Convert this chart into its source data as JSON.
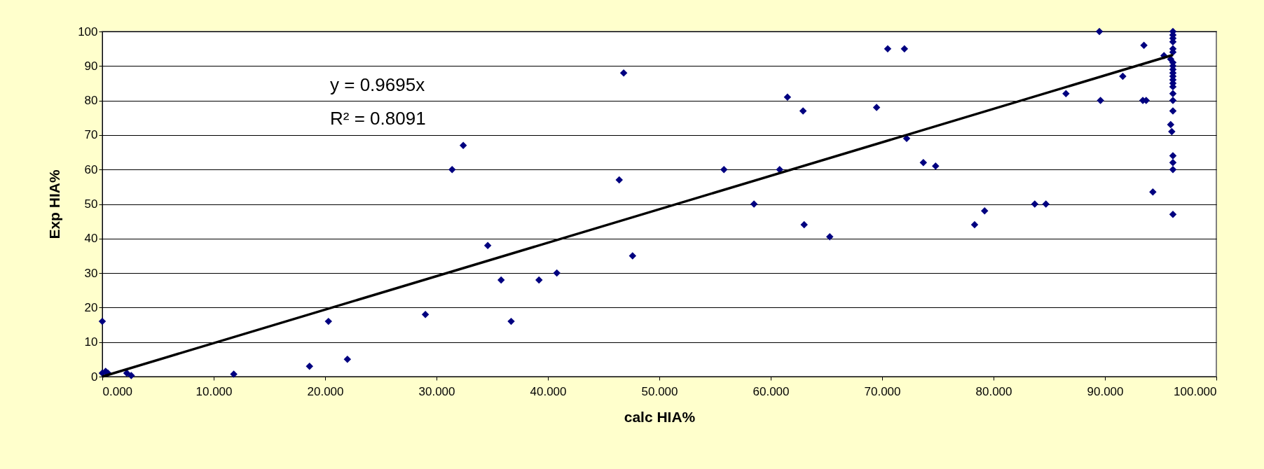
{
  "chart_data": {
    "type": "scatter",
    "xlabel": "calc HIA%",
    "ylabel": "Exp HIA%",
    "grid": "y",
    "xlim": [
      0,
      100
    ],
    "ylim": [
      0,
      100
    ],
    "xticks": [
      {
        "value": 0,
        "label": "0.000"
      },
      {
        "value": 10,
        "label": "10.000"
      },
      {
        "value": 20,
        "label": "20.000"
      },
      {
        "value": 30,
        "label": "30.000"
      },
      {
        "value": 40,
        "label": "40.000"
      },
      {
        "value": 50,
        "label": "50.000"
      },
      {
        "value": 60,
        "label": "60.000"
      },
      {
        "value": 70,
        "label": "70.000"
      },
      {
        "value": 80,
        "label": "80.000"
      },
      {
        "value": 90,
        "label": "90.000"
      },
      {
        "value": 100,
        "label": "100.000"
      }
    ],
    "yticks": [
      0,
      10,
      20,
      30,
      40,
      50,
      60,
      70,
      80,
      90,
      100
    ],
    "annotations": [
      "y = 0.9695x",
      "R² = 0.8091"
    ],
    "series": [
      {
        "marker": "diamond",
        "color": "#000080",
        "x": [
          0,
          0,
          0.3,
          0.5,
          2.2,
          2.6,
          11.8,
          18.6,
          20.3,
          22,
          29,
          31.4,
          32.4,
          34.6,
          35.8,
          36.7,
          39.2,
          40.8,
          46.4,
          46.8,
          47.6,
          55.8,
          58.5,
          60.8,
          61.5,
          62.9,
          63,
          65.3,
          69.5,
          70.5,
          72,
          72.2,
          73.7,
          74.8,
          78.3,
          79.2,
          83.7,
          84.7,
          86.5,
          89.5,
          89.6,
          91.6,
          93.4,
          93.7,
          93.5,
          94.3,
          95.3,
          95.9,
          95.9,
          96,
          96.1,
          96.1,
          96.1,
          96.1,
          96.1,
          96.1,
          96.1,
          96.1,
          96.1,
          96.1,
          96.1,
          96.1,
          96.1,
          96.1,
          96.1,
          96.1,
          96.1,
          96.1,
          96.1,
          96.1,
          96.1
        ],
        "values": [
          16,
          1,
          1.5,
          1,
          1,
          0.3,
          0.7,
          3,
          16,
          5,
          18,
          60,
          67,
          38,
          28,
          16,
          28,
          30,
          57,
          88,
          35,
          60,
          50,
          60,
          81,
          77,
          44,
          40.5,
          78,
          95,
          95,
          69,
          62,
          61,
          44,
          48,
          50,
          50,
          82,
          100,
          80,
          87,
          80,
          80,
          96,
          53.5,
          93,
          92,
          73,
          71,
          100,
          99,
          98,
          97,
          95,
          91,
          90,
          89,
          88,
          87,
          86,
          85,
          84,
          82,
          80,
          77,
          64,
          62,
          60,
          47,
          94
        ]
      },
      {
        "type": "line",
        "color": "#000000",
        "x": [
          0,
          96.1
        ],
        "values": [
          0,
          93.2
        ]
      }
    ]
  }
}
